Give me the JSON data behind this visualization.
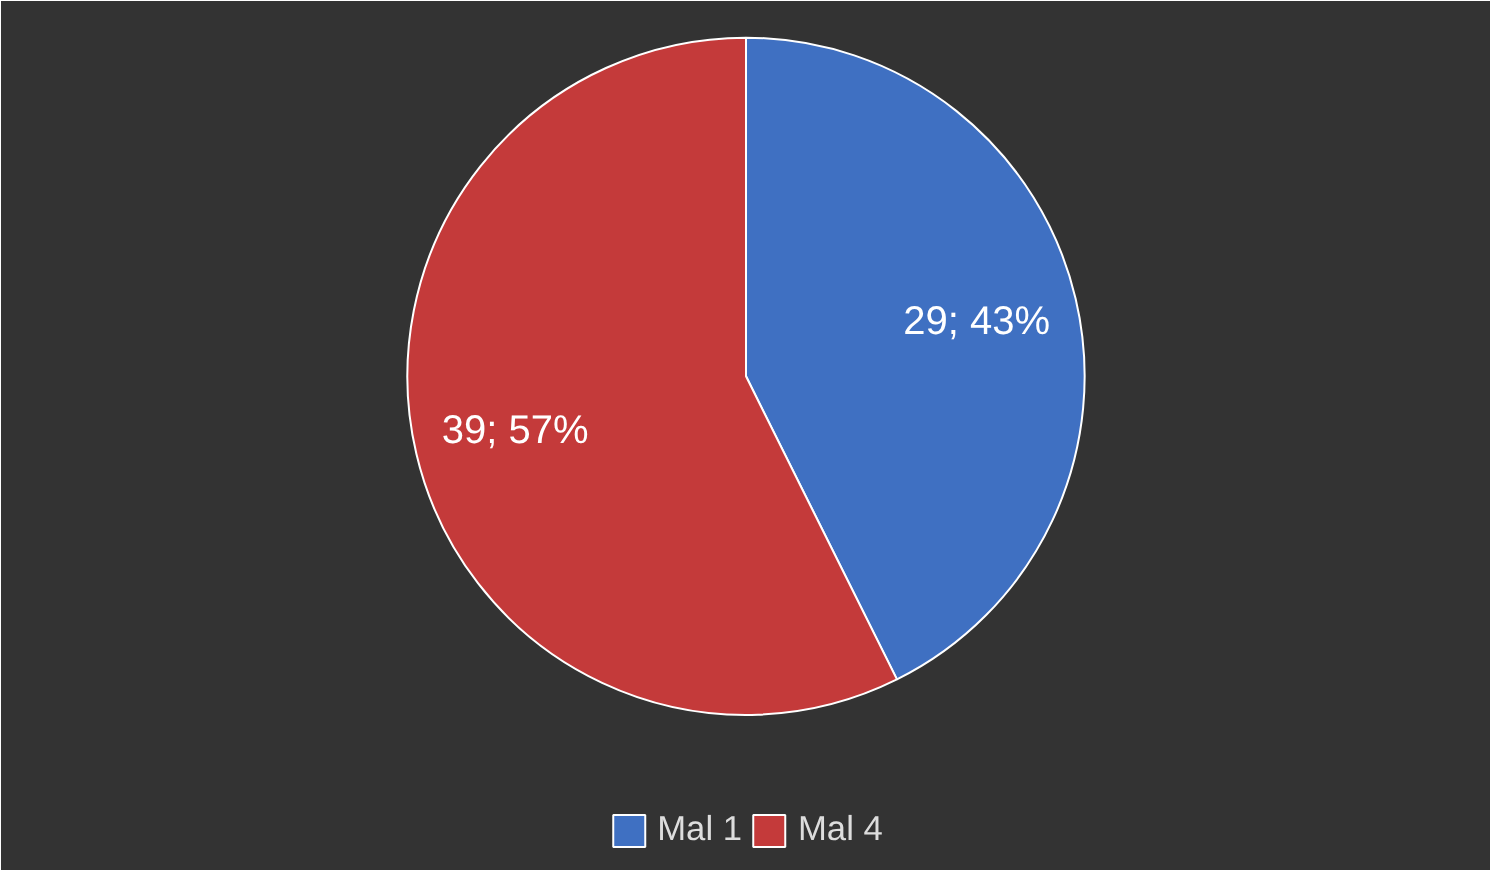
{
  "chart_data": {
    "type": "pie",
    "categories": [
      "Mal 1",
      "Mal 4"
    ],
    "values": [
      29,
      39
    ],
    "colors": [
      "#3f70c2",
      "#c43a3a"
    ],
    "value_labels": [
      "29; 43%",
      "39; 57%"
    ],
    "legend": "bottom"
  }
}
